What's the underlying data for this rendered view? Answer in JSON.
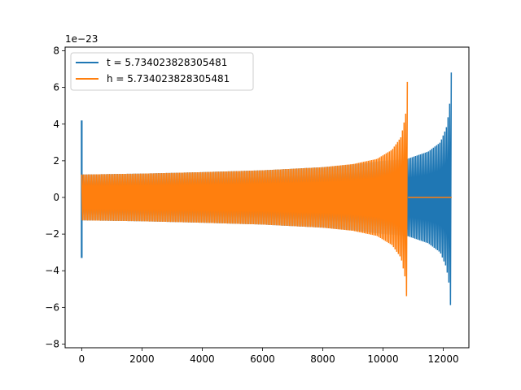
{
  "chart_data": {
    "type": "line",
    "title": "",
    "xlabel": "",
    "ylabel": "",
    "xlim": [
      -550,
      12850
    ],
    "ylim": [
      -8.2,
      8.2
    ],
    "y_offset_text": "1e−23",
    "x_ticks": [
      0,
      2000,
      4000,
      6000,
      8000,
      10000,
      12000
    ],
    "x_tick_labels": [
      "0",
      "2000",
      "4000",
      "6000",
      "8000",
      "10000",
      "12000"
    ],
    "y_ticks": [
      -8,
      -6,
      -4,
      -2,
      0,
      2,
      4,
      6,
      8
    ],
    "y_tick_labels": [
      "−8",
      "−6",
      "−4",
      "−2",
      "0",
      "2",
      "4",
      "6",
      "8"
    ],
    "grid": false,
    "legend_position": "upper-left",
    "series": [
      {
        "name": "t = 5.734023828305481",
        "color": "#1f77b4",
        "description": "oscillating waveform",
        "spike_x": 0,
        "spike_range": [
          -3.3,
          4.2
        ],
        "x_end": 12280,
        "envelope": {
          "x": [
            0,
            2000,
            4000,
            6000,
            8000,
            9000,
            10000,
            10800,
            11500,
            11900,
            12100,
            12200,
            12250,
            12280
          ],
          "amp": [
            1.25,
            1.3,
            1.38,
            1.48,
            1.65,
            1.8,
            2.0,
            2.1,
            2.5,
            3.0,
            3.8,
            4.8,
            6.2,
            7.4
          ]
        }
      },
      {
        "name": "h = 5.734023828305481",
        "color": "#ff7f0e",
        "description": "oscillating waveform",
        "x_start": 0,
        "x_end": 10830,
        "flat_after_x": [
          10830,
          12280
        ],
        "flat_value": 0,
        "envelope": {
          "x": [
            0,
            2000,
            4000,
            6000,
            8000,
            9000,
            9800,
            10300,
            10600,
            10750,
            10800,
            10830
          ],
          "amp": [
            1.25,
            1.3,
            1.38,
            1.48,
            1.65,
            1.82,
            2.1,
            2.6,
            3.3,
            4.5,
            6.0,
            7.4
          ]
        }
      }
    ]
  }
}
